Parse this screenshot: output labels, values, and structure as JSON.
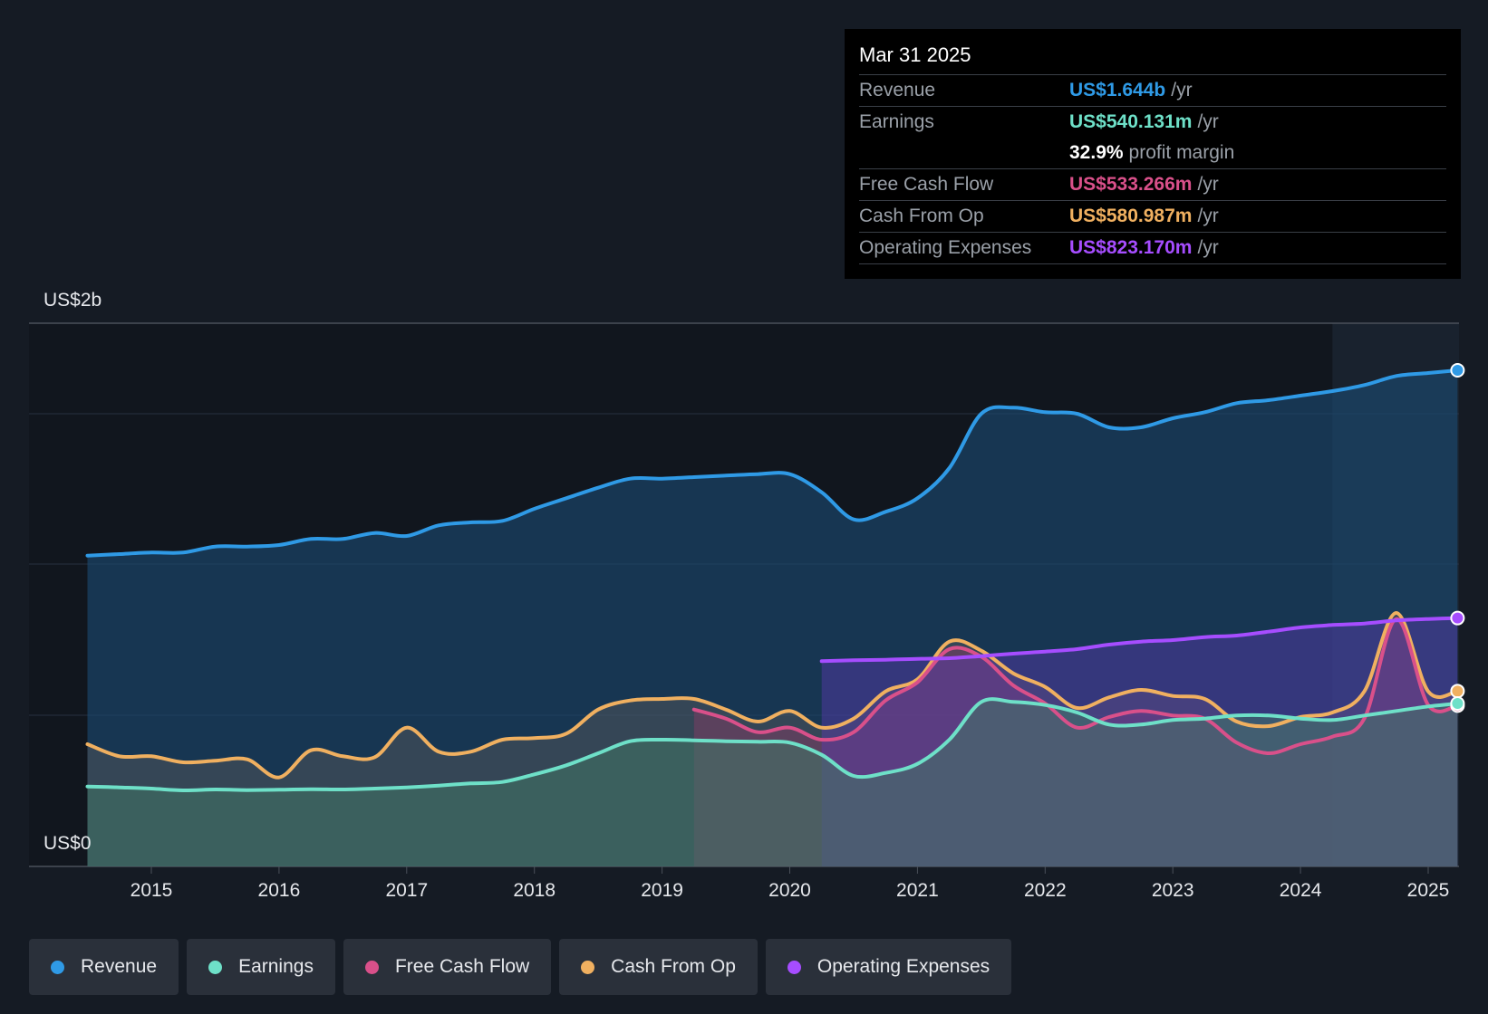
{
  "tooltip": {
    "date": "Mar 31 2025",
    "rows": [
      {
        "label": "Revenue",
        "value": "US$1.644b",
        "unit": "/yr",
        "color": "#2f9ae6"
      },
      {
        "label": "Earnings",
        "value": "US$540.131m",
        "unit": "/yr",
        "color": "#6ee0c8"
      },
      {
        "label": "",
        "value": "32.9%",
        "unit": "profit margin",
        "color": "#ffffff"
      },
      {
        "label": "Free Cash Flow",
        "value": "US$533.266m",
        "unit": "/yr",
        "color": "#d9508a"
      },
      {
        "label": "Cash From Op",
        "value": "US$580.987m",
        "unit": "/yr",
        "color": "#f0b060"
      },
      {
        "label": "Operating Expenses",
        "value": "US$823.170m",
        "unit": "/yr",
        "color": "#a64dff"
      }
    ]
  },
  "legend": [
    {
      "label": "Revenue",
      "color": "#2f9ae6"
    },
    {
      "label": "Earnings",
      "color": "#6ee0c8"
    },
    {
      "label": "Free Cash Flow",
      "color": "#d9508a"
    },
    {
      "label": "Cash From Op",
      "color": "#f0b060"
    },
    {
      "label": "Operating Expenses",
      "color": "#a64dff"
    }
  ],
  "chart_data": {
    "type": "line",
    "ylabels": {
      "top": "US$2b",
      "bottom": "US$0"
    },
    "ylim": [
      0,
      1.8
    ],
    "xlim": [
      2014.0,
      2025.23
    ],
    "xticks": [
      "2015",
      "2016",
      "2017",
      "2018",
      "2019",
      "2020",
      "2021",
      "2022",
      "2023",
      "2024",
      "2025"
    ],
    "grid": true,
    "legend_position": "bottom",
    "series": [
      {
        "name": "Revenue",
        "color": "#2f9ae6",
        "points": [
          [
            2014.5,
            1.03
          ],
          [
            2014.75,
            1.035
          ],
          [
            2015.0,
            1.04
          ],
          [
            2015.25,
            1.04
          ],
          [
            2015.5,
            1.06
          ],
          [
            2015.75,
            1.06
          ],
          [
            2016.0,
            1.065
          ],
          [
            2016.25,
            1.085
          ],
          [
            2016.5,
            1.085
          ],
          [
            2016.75,
            1.105
          ],
          [
            2017.0,
            1.095
          ],
          [
            2017.25,
            1.13
          ],
          [
            2017.5,
            1.14
          ],
          [
            2017.75,
            1.145
          ],
          [
            2018.0,
            1.185
          ],
          [
            2018.25,
            1.22
          ],
          [
            2018.5,
            1.255
          ],
          [
            2018.75,
            1.285
          ],
          [
            2019.0,
            1.285
          ],
          [
            2019.25,
            1.29
          ],
          [
            2019.5,
            1.295
          ],
          [
            2019.75,
            1.3
          ],
          [
            2020.0,
            1.3
          ],
          [
            2020.25,
            1.24
          ],
          [
            2020.5,
            1.15
          ],
          [
            2020.75,
            1.175
          ],
          [
            2021.0,
            1.22
          ],
          [
            2021.25,
            1.32
          ],
          [
            2021.5,
            1.5
          ],
          [
            2021.75,
            1.52
          ],
          [
            2022.0,
            1.505
          ],
          [
            2022.25,
            1.5
          ],
          [
            2022.5,
            1.455
          ],
          [
            2022.75,
            1.455
          ],
          [
            2023.0,
            1.485
          ],
          [
            2023.25,
            1.505
          ],
          [
            2023.5,
            1.535
          ],
          [
            2023.75,
            1.545
          ],
          [
            2024.0,
            1.56
          ],
          [
            2024.25,
            1.575
          ],
          [
            2024.5,
            1.595
          ],
          [
            2024.75,
            1.625
          ],
          [
            2025.0,
            1.635
          ],
          [
            2025.23,
            1.644
          ]
        ]
      },
      {
        "name": "Earnings",
        "color": "#6ee0c8",
        "points": [
          [
            2014.5,
            0.265
          ],
          [
            2014.75,
            0.262
          ],
          [
            2015.0,
            0.258
          ],
          [
            2015.25,
            0.252
          ],
          [
            2015.5,
            0.255
          ],
          [
            2015.75,
            0.253
          ],
          [
            2016.0,
            0.254
          ],
          [
            2016.25,
            0.256
          ],
          [
            2016.5,
            0.255
          ],
          [
            2016.75,
            0.258
          ],
          [
            2017.0,
            0.262
          ],
          [
            2017.25,
            0.268
          ],
          [
            2017.5,
            0.275
          ],
          [
            2017.75,
            0.28
          ],
          [
            2018.0,
            0.305
          ],
          [
            2018.25,
            0.335
          ],
          [
            2018.5,
            0.375
          ],
          [
            2018.75,
            0.415
          ],
          [
            2019.0,
            0.42
          ],
          [
            2019.25,
            0.418
          ],
          [
            2019.5,
            0.415
          ],
          [
            2019.75,
            0.413
          ],
          [
            2020.0,
            0.41
          ],
          [
            2020.25,
            0.37
          ],
          [
            2020.5,
            0.3
          ],
          [
            2020.75,
            0.31
          ],
          [
            2021.0,
            0.34
          ],
          [
            2021.25,
            0.42
          ],
          [
            2021.5,
            0.545
          ],
          [
            2021.75,
            0.545
          ],
          [
            2022.0,
            0.535
          ],
          [
            2022.25,
            0.51
          ],
          [
            2022.5,
            0.47
          ],
          [
            2022.75,
            0.47
          ],
          [
            2023.0,
            0.485
          ],
          [
            2023.25,
            0.49
          ],
          [
            2023.5,
            0.5
          ],
          [
            2023.75,
            0.5
          ],
          [
            2024.0,
            0.49
          ],
          [
            2024.25,
            0.485
          ],
          [
            2024.5,
            0.5
          ],
          [
            2024.75,
            0.515
          ],
          [
            2025.0,
            0.53
          ],
          [
            2025.23,
            0.54
          ]
        ]
      },
      {
        "name": "Free Cash Flow",
        "color": "#d9508a",
        "points": [
          [
            2019.25,
            0.52
          ],
          [
            2019.5,
            0.49
          ],
          [
            2019.75,
            0.445
          ],
          [
            2020.0,
            0.46
          ],
          [
            2020.25,
            0.42
          ],
          [
            2020.5,
            0.445
          ],
          [
            2020.75,
            0.55
          ],
          [
            2021.0,
            0.61
          ],
          [
            2021.25,
            0.72
          ],
          [
            2021.5,
            0.695
          ],
          [
            2021.75,
            0.6
          ],
          [
            2022.0,
            0.54
          ],
          [
            2022.25,
            0.46
          ],
          [
            2022.5,
            0.495
          ],
          [
            2022.75,
            0.515
          ],
          [
            2023.0,
            0.5
          ],
          [
            2023.25,
            0.49
          ],
          [
            2023.5,
            0.41
          ],
          [
            2023.75,
            0.375
          ],
          [
            2024.0,
            0.405
          ],
          [
            2024.25,
            0.43
          ],
          [
            2024.5,
            0.49
          ],
          [
            2024.75,
            0.82
          ],
          [
            2025.0,
            0.535
          ],
          [
            2025.23,
            0.533
          ]
        ]
      },
      {
        "name": "Cash From Op",
        "color": "#f0b060",
        "points": [
          [
            2014.5,
            0.405
          ],
          [
            2014.75,
            0.365
          ],
          [
            2015.0,
            0.365
          ],
          [
            2015.25,
            0.345
          ],
          [
            2015.5,
            0.35
          ],
          [
            2015.75,
            0.355
          ],
          [
            2016.0,
            0.295
          ],
          [
            2016.25,
            0.385
          ],
          [
            2016.5,
            0.365
          ],
          [
            2016.75,
            0.362
          ],
          [
            2017.0,
            0.46
          ],
          [
            2017.25,
            0.38
          ],
          [
            2017.5,
            0.38
          ],
          [
            2017.75,
            0.42
          ],
          [
            2018.0,
            0.425
          ],
          [
            2018.25,
            0.44
          ],
          [
            2018.5,
            0.52
          ],
          [
            2018.75,
            0.55
          ],
          [
            2019.0,
            0.555
          ],
          [
            2019.25,
            0.555
          ],
          [
            2019.5,
            0.52
          ],
          [
            2019.75,
            0.48
          ],
          [
            2020.0,
            0.515
          ],
          [
            2020.25,
            0.46
          ],
          [
            2020.5,
            0.49
          ],
          [
            2020.75,
            0.58
          ],
          [
            2021.0,
            0.62
          ],
          [
            2021.25,
            0.745
          ],
          [
            2021.5,
            0.715
          ],
          [
            2021.75,
            0.64
          ],
          [
            2022.0,
            0.595
          ],
          [
            2022.25,
            0.525
          ],
          [
            2022.5,
            0.56
          ],
          [
            2022.75,
            0.585
          ],
          [
            2023.0,
            0.565
          ],
          [
            2023.25,
            0.555
          ],
          [
            2023.5,
            0.48
          ],
          [
            2023.75,
            0.465
          ],
          [
            2024.0,
            0.495
          ],
          [
            2024.25,
            0.51
          ],
          [
            2024.5,
            0.58
          ],
          [
            2024.75,
            0.84
          ],
          [
            2025.0,
            0.58
          ],
          [
            2025.23,
            0.581
          ]
        ]
      },
      {
        "name": "Operating Expenses",
        "color": "#a64dff",
        "points": [
          [
            2020.25,
            0.68
          ],
          [
            2020.5,
            0.683
          ],
          [
            2020.75,
            0.685
          ],
          [
            2021.0,
            0.688
          ],
          [
            2021.25,
            0.69
          ],
          [
            2021.5,
            0.697
          ],
          [
            2021.75,
            0.705
          ],
          [
            2022.0,
            0.712
          ],
          [
            2022.25,
            0.72
          ],
          [
            2022.5,
            0.735
          ],
          [
            2022.75,
            0.745
          ],
          [
            2023.0,
            0.75
          ],
          [
            2023.25,
            0.76
          ],
          [
            2023.5,
            0.765
          ],
          [
            2023.75,
            0.778
          ],
          [
            2024.0,
            0.792
          ],
          [
            2024.25,
            0.8
          ],
          [
            2024.5,
            0.805
          ],
          [
            2024.75,
            0.815
          ],
          [
            2025.0,
            0.82
          ],
          [
            2025.23,
            0.823
          ]
        ]
      }
    ]
  }
}
